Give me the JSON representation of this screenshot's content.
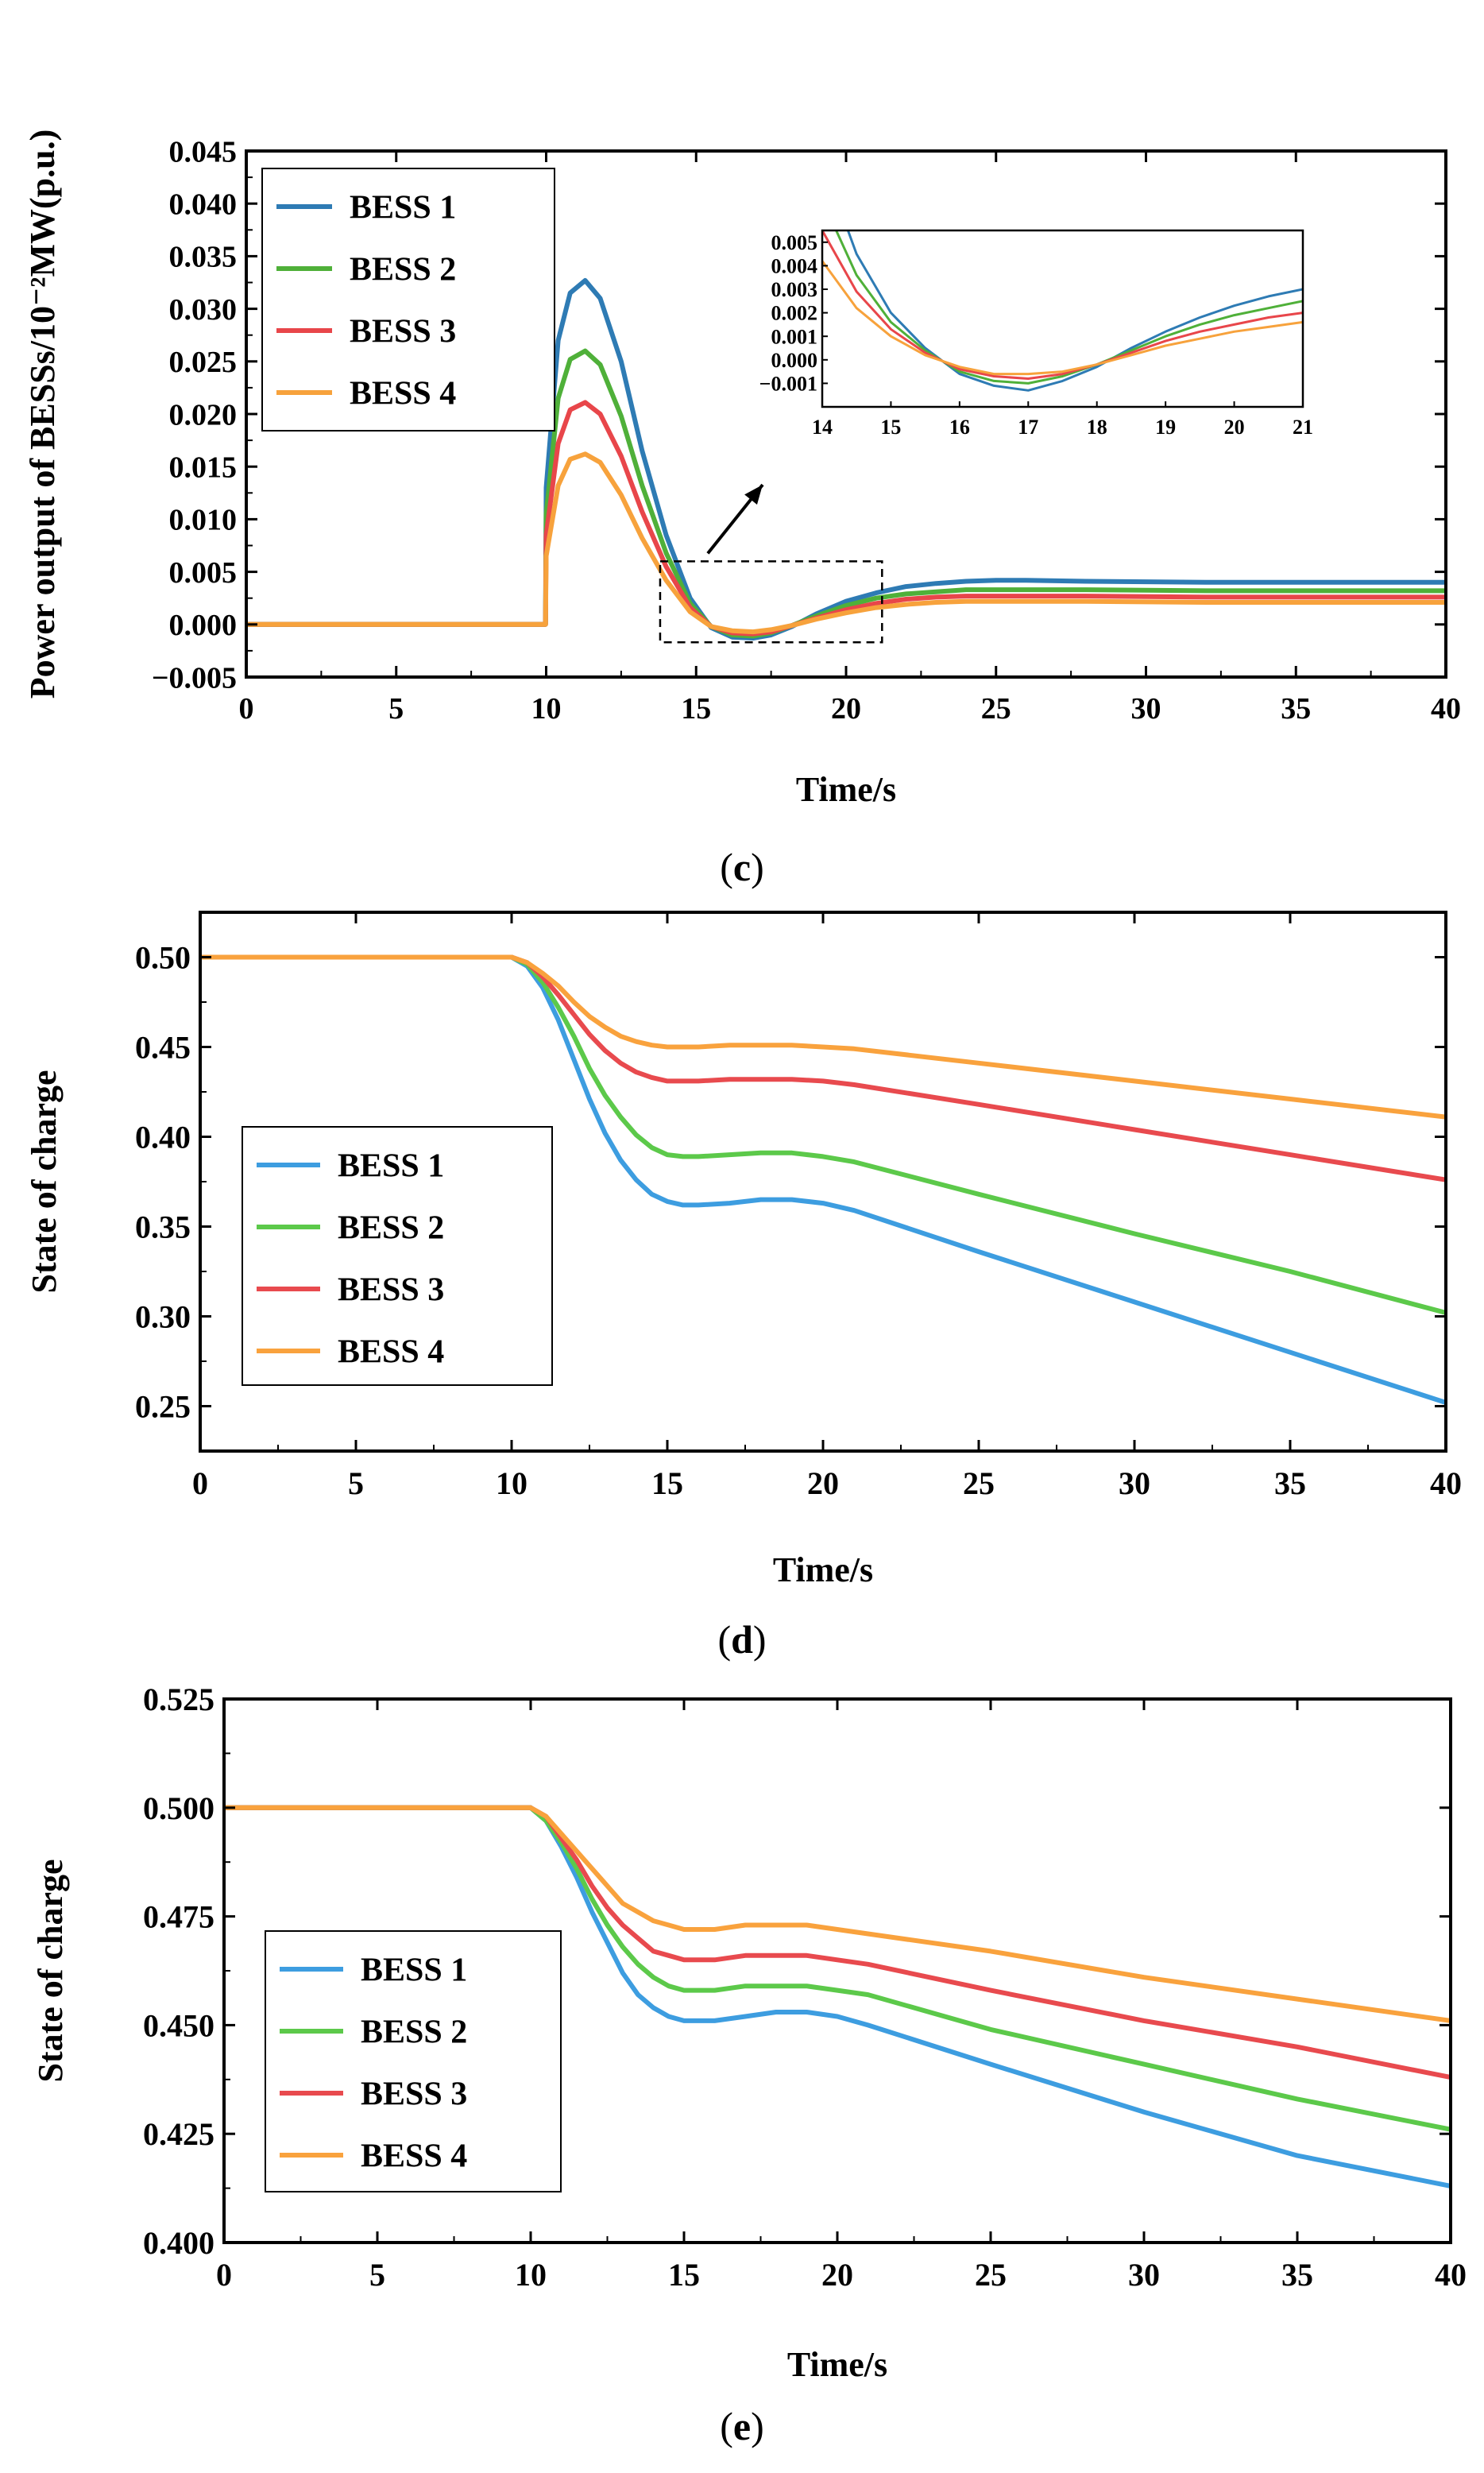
{
  "chart_data": [
    {
      "id": "c",
      "type": "line",
      "caption": {
        "open": "(",
        "letter": "c",
        "close": ")"
      },
      "xlabel": "Time/s",
      "ylabel": "Power output of BESSs/10⁻²MW(p.u.)",
      "xlim": [
        0,
        40
      ],
      "ylim": [
        -0.005,
        0.045
      ],
      "xticks": [
        "0",
        "5",
        "10",
        "15",
        "20",
        "25",
        "30",
        "35",
        "40"
      ],
      "yticks": [
        "−0.005",
        "0.000",
        "0.005",
        "0.010",
        "0.015",
        "0.020",
        "0.025",
        "0.030",
        "0.035",
        "0.040",
        "0.045"
      ],
      "legend_position": "top-left",
      "series": [
        {
          "name": "BESS 1",
          "color": "#2e7bb4",
          "x": [
            0,
            9.98,
            10,
            10.4,
            10.8,
            11.3,
            11.8,
            12.5,
            13.2,
            14,
            14.8,
            15.5,
            16.2,
            16.9,
            17.5,
            18.2,
            19,
            20,
            21,
            22,
            23,
            24,
            25,
            26,
            28,
            32,
            40
          ],
          "y": [
            0,
            0,
            0.013,
            0.027,
            0.0315,
            0.0327,
            0.031,
            0.025,
            0.0165,
            0.0085,
            0.0025,
            -0.0003,
            -0.0012,
            -0.0013,
            -0.001,
            -0.0002,
            0.001,
            0.0022,
            0.003,
            0.0036,
            0.0039,
            0.0041,
            0.0042,
            0.0042,
            0.0041,
            0.004,
            0.004
          ]
        },
        {
          "name": "BESS 2",
          "color": "#4fb039",
          "x": [
            0,
            9.98,
            10,
            10.4,
            10.8,
            11.3,
            11.8,
            12.5,
            13.2,
            14,
            14.8,
            15.5,
            16.2,
            16.9,
            17.5,
            18.2,
            19,
            20,
            21,
            22,
            23,
            24,
            25,
            26,
            28,
            32,
            40
          ],
          "y": [
            0,
            0,
            0.0105,
            0.0215,
            0.0252,
            0.026,
            0.0247,
            0.0198,
            0.0132,
            0.0068,
            0.002,
            -0.0002,
            -0.001,
            -0.0011,
            -0.0008,
            -0.0001,
            0.0008,
            0.0018,
            0.0025,
            0.0029,
            0.0031,
            0.0033,
            0.0033,
            0.0033,
            0.0033,
            0.0032,
            0.0032
          ]
        },
        {
          "name": "BESS 3",
          "color": "#e8464a",
          "x": [
            0,
            9.98,
            10,
            10.4,
            10.8,
            11.3,
            11.8,
            12.5,
            13.2,
            14,
            14.8,
            15.5,
            16.2,
            16.9,
            17.5,
            18.2,
            19,
            20,
            21,
            22,
            23,
            24,
            25,
            26,
            28,
            32,
            40
          ],
          "y": [
            0,
            0,
            0.0085,
            0.0172,
            0.0204,
            0.0211,
            0.02,
            0.016,
            0.0107,
            0.0055,
            0.0016,
            -0.0002,
            -0.0008,
            -0.0009,
            -0.0007,
            -0.0001,
            0.0006,
            0.0014,
            0.002,
            0.0024,
            0.0026,
            0.0027,
            0.0027,
            0.0027,
            0.0027,
            0.0026,
            0.0026
          ]
        },
        {
          "name": "BESS 4",
          "color": "#f7a23c",
          "x": [
            0,
            9.98,
            10,
            10.4,
            10.8,
            11.3,
            11.8,
            12.5,
            13.2,
            14,
            14.8,
            15.5,
            16.2,
            16.9,
            17.5,
            18.2,
            19,
            20,
            21,
            22,
            23,
            24,
            25,
            26,
            28,
            32,
            40
          ],
          "y": [
            0,
            0,
            0.0065,
            0.0132,
            0.0157,
            0.0162,
            0.0154,
            0.0123,
            0.0082,
            0.0042,
            0.0012,
            -0.0002,
            -0.0006,
            -0.0007,
            -0.0005,
            -0.0001,
            0.0005,
            0.0011,
            0.0016,
            0.0019,
            0.0021,
            0.0022,
            0.0022,
            0.0022,
            0.0022,
            0.0021,
            0.0021
          ]
        }
      ],
      "inset": {
        "xlim": [
          14,
          21
        ],
        "ylim": [
          -0.002,
          0.0055
        ],
        "xticks": [
          "14",
          "15",
          "16",
          "17",
          "18",
          "19",
          "20",
          "21"
        ],
        "yticks": [
          "−0.001",
          "0.000",
          "0.001",
          "0.002",
          "0.003",
          "0.004",
          "0.005"
        ],
        "zoom_box": {
          "xlim": [
            13.8,
            21.2
          ],
          "ylim": [
            -0.0017,
            0.006
          ]
        },
        "series": [
          {
            "name": "BESS 1",
            "color": "#2e7bb4",
            "x": [
              14,
              14.5,
              15,
              15.5,
              16,
              16.5,
              17,
              17.5,
              18,
              18.5,
              19,
              19.5,
              20,
              20.5,
              21
            ],
            "y": [
              0.0085,
              0.0045,
              0.002,
              0.0005,
              -0.0006,
              -0.0011,
              -0.0013,
              -0.0009,
              -0.0003,
              0.0005,
              0.0012,
              0.0018,
              0.0023,
              0.0027,
              0.003
            ]
          },
          {
            "name": "BESS 2",
            "color": "#4fb039",
            "x": [
              14,
              14.5,
              15,
              15.5,
              16,
              16.5,
              17,
              17.5,
              18,
              18.5,
              19,
              19.5,
              20,
              20.5,
              21
            ],
            "y": [
              0.0068,
              0.0036,
              0.0016,
              0.0004,
              -0.0005,
              -0.0009,
              -0.001,
              -0.0007,
              -0.0002,
              0.0004,
              0.001,
              0.0015,
              0.0019,
              0.0022,
              0.0025
            ]
          },
          {
            "name": "BESS 3",
            "color": "#e8464a",
            "x": [
              14,
              14.5,
              15,
              15.5,
              16,
              16.5,
              17,
              17.5,
              18,
              18.5,
              19,
              19.5,
              20,
              20.5,
              21
            ],
            "y": [
              0.0055,
              0.0029,
              0.0013,
              0.0003,
              -0.0004,
              -0.0007,
              -0.0008,
              -0.0006,
              -0.0002,
              0.0003,
              0.0008,
              0.0012,
              0.0015,
              0.0018,
              0.002
            ]
          },
          {
            "name": "BESS 4",
            "color": "#f7a23c",
            "x": [
              14,
              14.5,
              15,
              15.5,
              16,
              16.5,
              17,
              17.5,
              18,
              18.5,
              19,
              19.5,
              20,
              20.5,
              21
            ],
            "y": [
              0.0042,
              0.0022,
              0.001,
              0.0002,
              -0.0003,
              -0.0006,
              -0.0006,
              -0.0005,
              -0.0002,
              0.0002,
              0.0006,
              0.0009,
              0.0012,
              0.0014,
              0.0016
            ]
          }
        ]
      }
    },
    {
      "id": "d",
      "type": "line",
      "caption": {
        "open": "(",
        "letter": "d",
        "close": ")"
      },
      "xlabel": "Time/s",
      "ylabel": "State of charge",
      "xlim": [
        0,
        40
      ],
      "ylim": [
        0.225,
        0.525
      ],
      "xticks": [
        "0",
        "5",
        "10",
        "15",
        "20",
        "25",
        "30",
        "35",
        "40"
      ],
      "yticks": [
        "0.25",
        "0.30",
        "0.35",
        "0.40",
        "0.45",
        "0.50"
      ],
      "legend_position": "left",
      "series": [
        {
          "name": "BESS 1",
          "color": "#3d9de0",
          "x": [
            0,
            10,
            10.5,
            11,
            11.5,
            12,
            12.5,
            13,
            13.5,
            14,
            14.5,
            15,
            15.5,
            16,
            17,
            18,
            19,
            20,
            21,
            25,
            30,
            35,
            40
          ],
          "y": [
            0.5,
            0.5,
            0.495,
            0.483,
            0.465,
            0.443,
            0.421,
            0.402,
            0.387,
            0.376,
            0.368,
            0.364,
            0.362,
            0.362,
            0.363,
            0.365,
            0.365,
            0.363,
            0.359,
            0.336,
            0.308,
            0.28,
            0.252
          ]
        },
        {
          "name": "BESS 2",
          "color": "#5cc94a",
          "x": [
            0,
            10,
            10.5,
            11,
            11.5,
            12,
            12.5,
            13,
            13.5,
            14,
            14.5,
            15,
            15.5,
            16,
            17,
            18,
            19,
            20,
            21,
            25,
            30,
            35,
            40
          ],
          "y": [
            0.5,
            0.5,
            0.496,
            0.486,
            0.472,
            0.456,
            0.438,
            0.423,
            0.411,
            0.401,
            0.394,
            0.39,
            0.389,
            0.389,
            0.39,
            0.391,
            0.391,
            0.389,
            0.386,
            0.368,
            0.346,
            0.325,
            0.302
          ]
        },
        {
          "name": "BESS 3",
          "color": "#e84a4e",
          "x": [
            0,
            10,
            10.5,
            11,
            11.5,
            12,
            12.5,
            13,
            13.5,
            14,
            14.5,
            15,
            15.5,
            16,
            17,
            18,
            19,
            20,
            21,
            25,
            30,
            35,
            40
          ],
          "y": [
            0.5,
            0.5,
            0.497,
            0.489,
            0.479,
            0.468,
            0.457,
            0.448,
            0.441,
            0.436,
            0.433,
            0.431,
            0.431,
            0.431,
            0.432,
            0.432,
            0.432,
            0.431,
            0.429,
            0.418,
            0.404,
            0.39,
            0.376
          ]
        },
        {
          "name": "BESS 4",
          "color": "#f9a23d",
          "x": [
            0,
            10,
            10.5,
            11,
            11.5,
            12,
            12.5,
            13,
            13.5,
            14,
            14.5,
            15,
            15.5,
            16,
            17,
            18,
            19,
            20,
            21,
            25,
            30,
            35,
            40
          ],
          "y": [
            0.5,
            0.5,
            0.497,
            0.491,
            0.484,
            0.475,
            0.467,
            0.461,
            0.456,
            0.453,
            0.451,
            0.45,
            0.45,
            0.45,
            0.451,
            0.451,
            0.451,
            0.45,
            0.449,
            0.441,
            0.431,
            0.421,
            0.411
          ]
        }
      ]
    },
    {
      "id": "e",
      "type": "line",
      "caption": {
        "open": "(",
        "letter": "e",
        "close": ")"
      },
      "xlabel": "Time/s",
      "ylabel": "State of charge",
      "xlim": [
        0,
        40
      ],
      "ylim": [
        0.4,
        0.525
      ],
      "xticks": [
        "0",
        "5",
        "10",
        "15",
        "20",
        "25",
        "30",
        "35",
        "40"
      ],
      "yticks": [
        "0.400",
        "0.425",
        "0.450",
        "0.475",
        "0.500",
        "0.525"
      ],
      "legend_position": "left",
      "series": [
        {
          "name": "BESS 1",
          "color": "#3d9de0",
          "x": [
            0,
            10,
            10.5,
            11,
            11.5,
            12,
            12.5,
            13,
            13.5,
            14,
            14.5,
            15,
            15.5,
            16,
            17,
            18,
            19,
            20,
            21,
            25,
            30,
            35,
            40
          ],
          "y": [
            0.5,
            0.5,
            0.497,
            0.491,
            0.484,
            0.476,
            0.469,
            0.462,
            0.457,
            0.454,
            0.452,
            0.451,
            0.451,
            0.451,
            0.452,
            0.453,
            0.453,
            0.452,
            0.45,
            0.441,
            0.43,
            0.42,
            0.413
          ]
        },
        {
          "name": "BESS 2",
          "color": "#5cc94a",
          "x": [
            0,
            10,
            10.5,
            11,
            11.5,
            12,
            12.5,
            13,
            13.5,
            14,
            14.5,
            15,
            15.5,
            16,
            17,
            18,
            19,
            20,
            21,
            25,
            30,
            35,
            40
          ],
          "y": [
            0.5,
            0.5,
            0.497,
            0.492,
            0.486,
            0.479,
            0.473,
            0.468,
            0.464,
            0.461,
            0.459,
            0.458,
            0.458,
            0.458,
            0.459,
            0.459,
            0.459,
            0.458,
            0.457,
            0.449,
            0.441,
            0.433,
            0.426
          ]
        },
        {
          "name": "BESS 3",
          "color": "#e84a4e",
          "x": [
            0,
            10,
            10.5,
            11,
            11.5,
            12,
            12.5,
            13,
            13.5,
            14,
            14.5,
            15,
            15.5,
            16,
            17,
            18,
            19,
            20,
            21,
            25,
            30,
            35,
            40
          ],
          "y": [
            0.5,
            0.5,
            0.498,
            0.493,
            0.488,
            0.482,
            0.477,
            0.473,
            0.47,
            0.467,
            0.466,
            0.465,
            0.465,
            0.465,
            0.466,
            0.466,
            0.466,
            0.465,
            0.464,
            0.458,
            0.451,
            0.445,
            0.438
          ]
        },
        {
          "name": "BESS 4",
          "color": "#f9a23d",
          "x": [
            0,
            10,
            10.5,
            11,
            11.5,
            12,
            12.5,
            13,
            13.5,
            14,
            14.5,
            15,
            15.5,
            16,
            17,
            18,
            19,
            20,
            21,
            25,
            30,
            35,
            40
          ],
          "y": [
            0.5,
            0.5,
            0.498,
            0.494,
            0.49,
            0.486,
            0.482,
            0.478,
            0.476,
            0.474,
            0.473,
            0.472,
            0.472,
            0.472,
            0.473,
            0.473,
            0.473,
            0.472,
            0.471,
            0.467,
            0.461,
            0.456,
            0.451
          ]
        }
      ]
    }
  ]
}
